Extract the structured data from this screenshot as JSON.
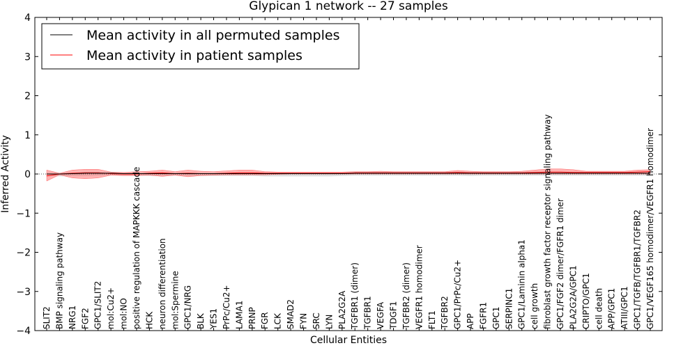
{
  "chart_data": {
    "type": "line",
    "title": "Glypican 1 network -- 27 samples",
    "xlabel": "Cellular Entities",
    "ylabel": "Inferred Activity",
    "ylim": [
      -4,
      4
    ],
    "yticks": [
      "−4",
      "−3",
      "−2",
      "−1",
      "0",
      "1",
      "2",
      "3",
      "4"
    ],
    "legend_position": "top-left",
    "grid": false,
    "categories": [
      "SLIT2",
      "BMP signaling pathway",
      "NRG1",
      "FGF2",
      "GPC1/SLIT2",
      "mol:Cu2+",
      "mol:NO",
      "positive regulation of MAPKKK cascade",
      "HCK",
      "neuron differentiation",
      "mol:Spermine",
      "GPC1/NRG",
      "BLK",
      "YES1",
      "PrPc/Cu2+",
      "LAMA1",
      "PRNP",
      "FGR",
      "LCK",
      "SMAD2",
      "FYN",
      "SRC",
      "LYN",
      "PLA2G2A",
      "TGFBR1 (dimer)",
      "TGFBR1",
      "VEGFA",
      "TDGF1",
      "TGFBR2 (dimer)",
      "VEGFR1 homodimer",
      "FLT1",
      "TGFBR2",
      "GPC1/PrPc/Cu2+",
      "APP",
      "FGFR1",
      "GPC1",
      "SERPINC1",
      "GPC1/Laminin alpha1",
      "cell growth",
      "fibroblast growth factor receptor signaling pathway",
      "GPC1/FGF2 dimer/FGFR1 dimer",
      "PLA2G2A/GPC1",
      "CRIPTO/GPC1",
      "cell death",
      "APP/GPC1",
      "ATIII/GPC1",
      "GPC1/TGFB/TGFBR1/TGFBR2",
      "GPC1/VEGF165 homodimer/VEGFR1 homodimer"
    ],
    "series": [
      {
        "name": "Mean activity in all permuted samples",
        "color": "#000000",
        "values": [
          0.0,
          0.0,
          0.01,
          0.02,
          0.02,
          0.02,
          0.01,
          0.01,
          0.01,
          0.01,
          0.01,
          0.01,
          0.01,
          0.01,
          0.01,
          0.01,
          0.01,
          0.01,
          0.01,
          0.01,
          0.01,
          0.01,
          0.01,
          0.01,
          0.02,
          0.02,
          0.02,
          0.02,
          0.02,
          0.02,
          0.02,
          0.02,
          0.02,
          0.02,
          0.02,
          0.02,
          0.02,
          0.02,
          0.02,
          0.02,
          0.02,
          0.02,
          0.02,
          0.02,
          0.02,
          0.02,
          0.02,
          0.02
        ],
        "band_upper": [
          0.03,
          0.02,
          0.03,
          0.04,
          0.04,
          0.04,
          0.03,
          0.03,
          0.03,
          0.03,
          0.03,
          0.03,
          0.03,
          0.03,
          0.03,
          0.03,
          0.03,
          0.03,
          0.03,
          0.03,
          0.03,
          0.03,
          0.03,
          0.03,
          0.04,
          0.04,
          0.04,
          0.04,
          0.04,
          0.04,
          0.04,
          0.04,
          0.04,
          0.04,
          0.04,
          0.04,
          0.04,
          0.04,
          0.04,
          0.04,
          0.04,
          0.04,
          0.04,
          0.04,
          0.04,
          0.04,
          0.04,
          0.04
        ],
        "band_lower": [
          -0.05,
          -0.06,
          -0.05,
          -0.05,
          -0.04,
          -0.03,
          -0.04,
          -0.04,
          -0.05,
          -0.05,
          -0.04,
          -0.05,
          -0.05,
          -0.05,
          -0.05,
          -0.05,
          -0.05,
          -0.06,
          -0.06,
          -0.06,
          -0.06,
          -0.06,
          -0.06,
          -0.05,
          -0.04,
          -0.04,
          -0.04,
          -0.04,
          -0.04,
          -0.04,
          -0.04,
          -0.04,
          -0.04,
          -0.05,
          -0.04,
          -0.04,
          -0.04,
          -0.04,
          -0.04,
          -0.04,
          -0.04,
          -0.04,
          -0.04,
          -0.04,
          -0.04,
          -0.04,
          -0.04,
          -0.04
        ]
      },
      {
        "name": "Mean activity in patient samples",
        "color": "#ff0000",
        "values": [
          -0.05,
          0.0,
          0.02,
          0.03,
          0.03,
          0.01,
          0.0,
          0.0,
          0.02,
          0.03,
          0.01,
          0.02,
          0.01,
          0.01,
          0.02,
          0.03,
          0.03,
          0.02,
          0.02,
          0.02,
          0.02,
          0.02,
          0.02,
          0.02,
          0.03,
          0.03,
          0.03,
          0.03,
          0.03,
          0.03,
          0.03,
          0.03,
          0.04,
          0.03,
          0.03,
          0.03,
          0.03,
          0.03,
          0.04,
          0.05,
          0.05,
          0.04,
          0.04,
          0.04,
          0.04,
          0.04,
          0.05,
          0.06
        ],
        "band_upper": [
          0.1,
          0.02,
          0.1,
          0.12,
          0.12,
          0.05,
          0.04,
          0.06,
          0.07,
          0.1,
          0.06,
          0.1,
          0.07,
          0.06,
          0.08,
          0.1,
          0.1,
          0.06,
          0.05,
          0.05,
          0.05,
          0.05,
          0.05,
          0.05,
          0.06,
          0.06,
          0.07,
          0.06,
          0.06,
          0.06,
          0.06,
          0.06,
          0.09,
          0.07,
          0.06,
          0.06,
          0.06,
          0.07,
          0.1,
          0.13,
          0.13,
          0.11,
          0.07,
          0.07,
          0.07,
          0.07,
          0.1,
          0.11
        ],
        "band_lower": [
          -0.18,
          -0.02,
          -0.1,
          -0.12,
          -0.1,
          -0.03,
          -0.04,
          -0.04,
          -0.03,
          -0.06,
          -0.03,
          -0.07,
          -0.04,
          -0.03,
          -0.02,
          -0.02,
          -0.02,
          -0.02,
          -0.01,
          0.0,
          0.0,
          0.0,
          0.0,
          0.0,
          0.0,
          0.0,
          0.0,
          0.0,
          0.0,
          0.0,
          0.0,
          0.0,
          0.0,
          0.0,
          0.0,
          0.0,
          0.0,
          0.0,
          0.0,
          0.0,
          0.0,
          0.0,
          0.0,
          0.0,
          0.0,
          0.0,
          0.0,
          0.0
        ]
      }
    ]
  }
}
